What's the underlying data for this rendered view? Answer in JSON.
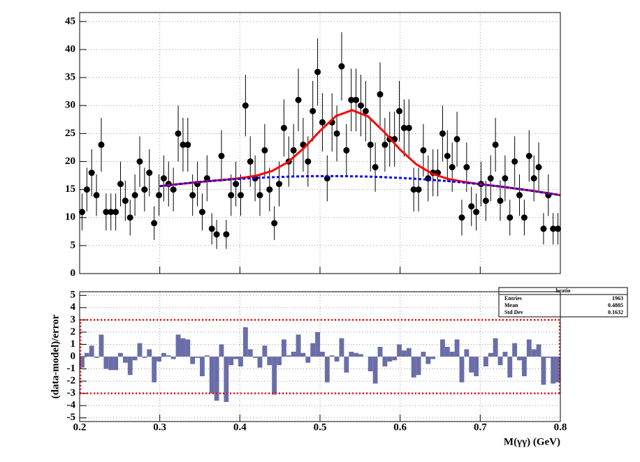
{
  "chart_data": [
    {
      "type": "scatter",
      "x": [
        0.203,
        0.209,
        0.215,
        0.221,
        0.227,
        0.233,
        0.239,
        0.245,
        0.251,
        0.257,
        0.263,
        0.269,
        0.275,
        0.281,
        0.287,
        0.293,
        0.299,
        0.305,
        0.311,
        0.317,
        0.323,
        0.329,
        0.335,
        0.341,
        0.347,
        0.353,
        0.359,
        0.365,
        0.371,
        0.377,
        0.383,
        0.389,
        0.395,
        0.401,
        0.407,
        0.413,
        0.419,
        0.425,
        0.431,
        0.437,
        0.443,
        0.449,
        0.455,
        0.461,
        0.467,
        0.473,
        0.479,
        0.485,
        0.491,
        0.497,
        0.503,
        0.509,
        0.515,
        0.521,
        0.527,
        0.533,
        0.539,
        0.545,
        0.551,
        0.557,
        0.563,
        0.569,
        0.575,
        0.581,
        0.587,
        0.593,
        0.599,
        0.605,
        0.611,
        0.617,
        0.623,
        0.629,
        0.635,
        0.641,
        0.647,
        0.653,
        0.659,
        0.665,
        0.671,
        0.677,
        0.683,
        0.689,
        0.695,
        0.701,
        0.707,
        0.713,
        0.719,
        0.725,
        0.731,
        0.737,
        0.743,
        0.749,
        0.755,
        0.761,
        0.767,
        0.773,
        0.779,
        0.785,
        0.791,
        0.797
      ],
      "values": [
        11,
        15,
        18,
        14,
        23,
        11,
        11,
        11,
        16,
        13,
        10,
        14,
        20,
        15,
        18,
        9,
        14,
        17,
        16,
        15,
        25,
        23,
        23,
        14,
        16,
        11,
        17,
        8,
        7,
        21,
        7,
        14,
        16,
        14,
        30,
        20,
        17,
        14,
        22,
        15,
        9,
        16,
        26,
        20,
        22,
        31,
        23,
        20,
        29,
        36,
        27,
        17,
        27,
        25,
        37,
        22,
        31,
        31,
        30,
        29,
        23,
        19,
        32,
        23,
        24,
        24,
        29,
        26,
        26,
        15,
        15,
        22,
        17,
        18,
        18,
        25,
        21,
        19,
        24,
        10,
        19,
        12,
        11,
        16,
        13,
        17,
        23,
        13,
        17,
        10,
        20,
        14,
        10,
        21,
        17,
        19,
        8,
        14,
        8,
        8
      ],
      "errors": [
        3.3,
        3.9,
        4.2,
        3.7,
        4.8,
        3.3,
        3.3,
        3.3,
        4,
        3.6,
        3.2,
        3.7,
        4.5,
        3.9,
        4.2,
        3,
        3.7,
        4.1,
        4,
        3.9,
        5,
        4.8,
        4.8,
        3.7,
        4,
        3.3,
        4.1,
        2.8,
        2.6,
        4.6,
        2.6,
        3.7,
        4,
        3.7,
        5.5,
        4.5,
        4.1,
        3.7,
        4.7,
        3.9,
        3,
        4,
        5.1,
        4.5,
        4.7,
        5.6,
        4.8,
        4.5,
        5.4,
        6,
        5.2,
        4.1,
        5.2,
        5,
        6.1,
        4.7,
        5.6,
        5.6,
        5.5,
        5.4,
        4.8,
        4.4,
        5.7,
        4.8,
        4.9,
        4.9,
        5.4,
        5.1,
        5.1,
        3.9,
        3.9,
        4.7,
        4.1,
        4.2,
        4.2,
        5,
        4.6,
        4.4,
        4.9,
        3.2,
        4.4,
        3.5,
        3.3,
        4,
        3.6,
        4.1,
        4.8,
        3.6,
        4.1,
        3.2,
        4.5,
        3.7,
        3.2,
        4.6,
        4.1,
        4.4,
        2.8,
        3.7,
        2.8,
        2.8
      ],
      "color": "#000000",
      "fits": [
        {
          "x": [
            0.3,
            0.32,
            0.34,
            0.36,
            0.38,
            0.4,
            0.42,
            0.44,
            0.46,
            0.48,
            0.5,
            0.52,
            0.54,
            0.56,
            0.58,
            0.6,
            0.62,
            0.64,
            0.66,
            0.68,
            0.7,
            0.72,
            0.74,
            0.76,
            0.78,
            0.8
          ],
          "values": [
            15.6,
            15.92,
            16.22,
            16.49,
            16.74,
            17.02,
            17.46,
            18.31,
            19.9,
            22.41,
            25.48,
            28.14,
            29.17,
            28.05,
            25.29,
            22.12,
            19.52,
            17.83,
            16.89,
            16.35,
            15.97,
            15.63,
            15.26,
            14.87,
            14.45,
            14.0
          ],
          "color": "#ff0000",
          "style": "solid"
        },
        {
          "x": [
            0.3,
            0.32,
            0.34,
            0.36,
            0.38,
            0.4,
            0.42,
            0.44,
            0.46,
            0.48,
            0.5,
            0.52,
            0.54,
            0.56,
            0.58,
            0.6,
            0.62,
            0.64,
            0.66,
            0.68,
            0.7,
            0.72,
            0.74,
            0.76,
            0.78,
            0.8
          ],
          "values": [
            15.6,
            15.92,
            16.22,
            16.48,
            16.71,
            16.91,
            17.07,
            17.2,
            17.3,
            17.37,
            17.4,
            17.4,
            17.37,
            17.31,
            17.21,
            17.08,
            16.92,
            16.72,
            16.5,
            16.24,
            15.95,
            15.62,
            15.26,
            14.87,
            14.45,
            14.0
          ],
          "color": "#0000ff",
          "style": "dashed"
        }
      ],
      "xlim": [
        0.2,
        0.8
      ],
      "xticks": [
        0.3,
        0.4,
        0.5,
        0.6,
        0.7
      ],
      "ylim": [
        0,
        46.6
      ],
      "yticks": [
        0,
        5,
        10,
        15,
        20,
        25,
        30,
        35,
        40,
        45
      ],
      "grid": true
    },
    {
      "type": "histogram",
      "bins": [
        0.2,
        0.206,
        0.212,
        0.218,
        0.224,
        0.23,
        0.236,
        0.242,
        0.248,
        0.254,
        0.26,
        0.266,
        0.272,
        0.278,
        0.284,
        0.29,
        0.296,
        0.302,
        0.308,
        0.314,
        0.32,
        0.326,
        0.332,
        0.338,
        0.344,
        0.35,
        0.356,
        0.362,
        0.368,
        0.374,
        0.38,
        0.386,
        0.392,
        0.398,
        0.404,
        0.41,
        0.416,
        0.422,
        0.428,
        0.434,
        0.44,
        0.446,
        0.452,
        0.458,
        0.464,
        0.47,
        0.476,
        0.482,
        0.488,
        0.494,
        0.5,
        0.506,
        0.512,
        0.518,
        0.524,
        0.53,
        0.536,
        0.542,
        0.548,
        0.554,
        0.56,
        0.566,
        0.572,
        0.578,
        0.584,
        0.59,
        0.596,
        0.602,
        0.608,
        0.614,
        0.62,
        0.626,
        0.632,
        0.638,
        0.644,
        0.65,
        0.656,
        0.662,
        0.668,
        0.674,
        0.68,
        0.686,
        0.692,
        0.698,
        0.704,
        0.71,
        0.716,
        0.722,
        0.728,
        0.734,
        0.74,
        0.746,
        0.752,
        0.758,
        0.764,
        0.77,
        0.776,
        0.782,
        0.788,
        0.794,
        0.8
      ],
      "values": [
        -0.9,
        0.3,
        0.9,
        -0.1,
        1.8,
        -1.0,
        -1.1,
        -1.1,
        0.3,
        -0.5,
        -1.5,
        -0.3,
        1.1,
        -0.1,
        0.6,
        -2.1,
        -0.4,
        0.3,
        0.1,
        -0.2,
        1.8,
        1.5,
        1.4,
        -0.6,
        -0.1,
        -1.6,
        0.1,
        -3.0,
        -3.6,
        1.0,
        -3.7,
        -0.7,
        -0.2,
        -0.8,
        2.4,
        0.6,
        -0.1,
        -0.9,
        0.9,
        -0.7,
        -3.1,
        -0.7,
        1.4,
        0.1,
        0.4,
        1.8,
        0.3,
        -0.5,
        1.1,
        2.0,
        0.4,
        -2.1,
        0.1,
        -0.4,
        1.5,
        -1.3,
        0.4,
        0.3,
        0.2,
        0,
        -1.2,
        -2.2,
        0.8,
        -0.8,
        -0.4,
        -0.3,
        1.0,
        0.5,
        0.7,
        -1.7,
        -1.5,
        0.4,
        -0.6,
        -0.2,
        0,
        1.4,
        0.8,
        0.4,
        1.4,
        -2.1,
        0.6,
        -1.3,
        -1.6,
        0,
        -0.8,
        0.3,
        1.5,
        -0.7,
        0.4,
        -1.7,
        1.1,
        -0.3,
        -1.6,
        1.4,
        0.6,
        1.0,
        -2.3,
        -0.1,
        -2.2,
        -2.1
      ],
      "color": "#6a6ea8",
      "band": {
        "values": [
          -3,
          3
        ],
        "color": "#ff0000"
      },
      "xlim": [
        0.2,
        0.8
      ],
      "xticks": [
        0.2,
        0.3,
        0.4,
        0.5,
        0.6,
        0.7,
        0.8
      ],
      "ylim": [
        -5.3,
        5.3
      ],
      "yticks": [
        -5,
        -4,
        -3,
        -2,
        -1,
        0,
        1,
        2,
        3,
        4,
        5
      ],
      "grid": true,
      "ylabel": "(data-model)/error",
      "xlabel": "M(γγ) (GeV)",
      "stats": {
        "title": "hratio",
        "rows": [
          {
            "label": "Entries",
            "value": 1963
          },
          {
            "label": "Mean",
            "value": 0.4805
          },
          {
            "label": "Std Dev",
            "value": 0.1632
          }
        ]
      }
    }
  ]
}
